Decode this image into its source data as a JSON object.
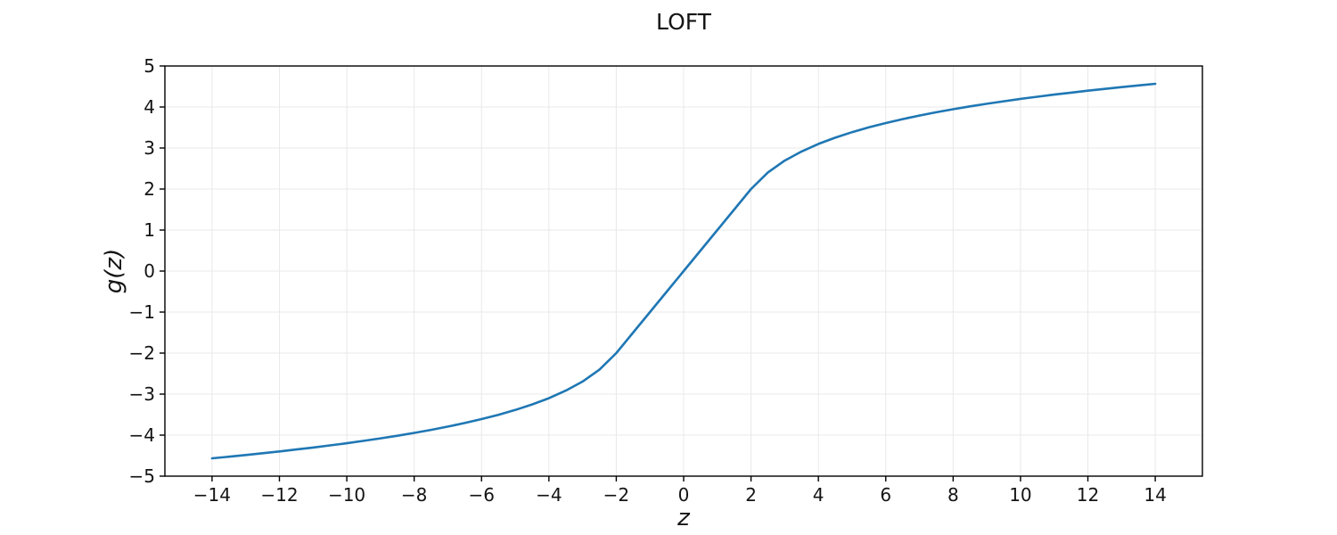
{
  "chart_data": {
    "type": "line",
    "title": "LOFT",
    "xlabel": "z",
    "ylabel": "g(z)",
    "xlim": [
      -15.4,
      15.4
    ],
    "ylim": [
      -5,
      5
    ],
    "x_ticks": [
      -14,
      -12,
      -10,
      -8,
      -6,
      -4,
      -2,
      0,
      2,
      4,
      6,
      8,
      10,
      12,
      14
    ],
    "y_ticks": [
      -5,
      -4,
      -3,
      -2,
      -1,
      0,
      1,
      2,
      3,
      4,
      5
    ],
    "grid": true,
    "legend": "none",
    "line_color": "#1f77b4",
    "grid_color": "#e9e9e9",
    "spine_color": "#000000",
    "tick_color": "#141414",
    "background_color": "#ffffff",
    "series": [
      {
        "name": "g(z)",
        "x": [
          -14,
          -13.5,
          -13,
          -12.5,
          -12,
          -11.5,
          -11,
          -10.5,
          -10,
          -9.5,
          -9,
          -8.5,
          -8,
          -7.5,
          -7,
          -6.5,
          -6,
          -5.5,
          -5,
          -4.5,
          -4,
          -3.5,
          -3,
          -2.5,
          -2,
          -1.5,
          -1,
          -0.5,
          0,
          0.5,
          1,
          1.5,
          2,
          2.5,
          3,
          3.5,
          4,
          4.5,
          5,
          5.5,
          6,
          6.5,
          7,
          7.5,
          8,
          8.5,
          9,
          9.5,
          10,
          10.5,
          11,
          11.5,
          12,
          12.5,
          13,
          13.5,
          14
        ],
        "y": [
          -4.565,
          -4.526,
          -4.485,
          -4.442,
          -4.398,
          -4.351,
          -4.303,
          -4.251,
          -4.197,
          -4.14,
          -4.079,
          -4.015,
          -3.946,
          -3.872,
          -3.792,
          -3.705,
          -3.609,
          -3.504,
          -3.386,
          -3.253,
          -3.099,
          -2.916,
          -2.693,
          -2.405,
          -2,
          -1.5,
          -1,
          -0.5,
          0,
          0.5,
          1,
          1.5,
          2,
          2.405,
          2.693,
          2.916,
          3.099,
          3.253,
          3.386,
          3.504,
          3.609,
          3.705,
          3.792,
          3.872,
          3.946,
          4.015,
          4.079,
          4.14,
          4.197,
          4.251,
          4.303,
          4.351,
          4.398,
          4.442,
          4.485,
          4.526,
          4.565
        ]
      }
    ]
  }
}
